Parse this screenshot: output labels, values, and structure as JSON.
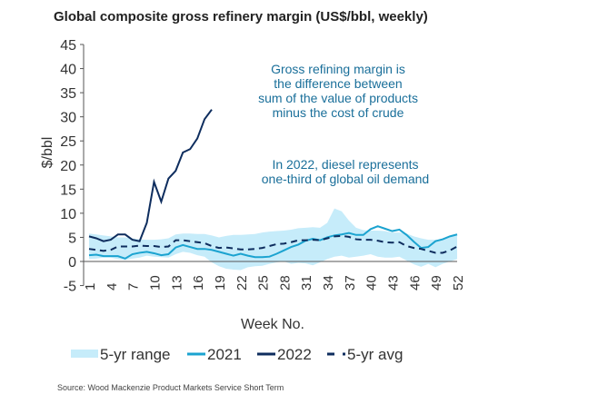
{
  "chart_data": {
    "type": "line",
    "title": "Global composite gross refinery margin (US$/bbl, weekly)",
    "xlabel": "Week No.",
    "ylabel": "$/bbl",
    "ylim": [
      -5,
      45
    ],
    "xlim": [
      1,
      52
    ],
    "yticks": [
      -5,
      0,
      5,
      10,
      15,
      20,
      25,
      30,
      35,
      40,
      45
    ],
    "xticks": [
      1,
      4,
      7,
      10,
      13,
      16,
      19,
      22,
      25,
      28,
      31,
      34,
      37,
      40,
      43,
      46,
      49,
      52
    ],
    "grid": false,
    "legend": "bottom",
    "colors": {
      "range": "#c6ecfa",
      "2021": "#1ba3d0",
      "2022": "#0e2d5e",
      "avg": "#0e2d5e",
      "annotation": "#1a6f9a"
    },
    "range": {
      "name": "5-yr range",
      "high": [
        5.8,
        5.6,
        5.4,
        5.2,
        5.0,
        5.0,
        4.8,
        4.6,
        4.5,
        4.5,
        4.6,
        4.8,
        5.6,
        5.8,
        5.8,
        5.7,
        5.7,
        5.4,
        5.0,
        5.3,
        5.5,
        5.5,
        5.6,
        5.7,
        6.0,
        6.2,
        6.3,
        6.4,
        6.6,
        6.9,
        7.0,
        7.1,
        7.0,
        8.0,
        11.0,
        10.4,
        8.5,
        7.0,
        6.5,
        6.4,
        6.4,
        6.3,
        6.0,
        6.0,
        5.8,
        5.2,
        4.8,
        4.5,
        4.5,
        4.6,
        5.0,
        5.6
      ],
      "low": [
        0.5,
        0.6,
        0.8,
        0.8,
        0.5,
        0.3,
        0.6,
        0.8,
        1.2,
        1.0,
        0.9,
        0.8,
        1.5,
        2.0,
        1.8,
        1.3,
        1.0,
        -0.2,
        -1.0,
        -1.5,
        -1.7,
        -1.8,
        -1.2,
        -1.0,
        -0.9,
        -0.5,
        -0.2,
        0,
        -0.5,
        -0.3,
        -0.4,
        -0.8,
        -0.2,
        0.5,
        1.0,
        1.2,
        0.8,
        1.0,
        1.2,
        1.5,
        1.0,
        0.8,
        0.8,
        1.0,
        0.2,
        -0.6,
        -1.1,
        -0.5,
        -1.2,
        -0.5,
        0,
        0.5
      ]
    },
    "series": [
      {
        "name": "2021",
        "values": [
          1.3,
          1.4,
          1.1,
          1.1,
          1.1,
          0.6,
          1.5,
          1.8,
          2,
          1.7,
          1.3,
          1.5,
          2.9,
          3.4,
          3,
          2.6,
          2.6,
          2.4,
          2,
          1.6,
          1.2,
          1.6,
          1.2,
          0.9,
          0.9,
          1,
          1.6,
          2.3,
          3,
          3.5,
          4.3,
          4.7,
          4.4,
          5,
          5.4,
          5.6,
          5.9,
          5.5,
          5.5,
          6.7,
          7.3,
          6.8,
          6.3,
          6.6,
          5.5,
          4.1,
          2.8,
          3,
          4.2,
          4.6,
          5.2,
          5.6
        ]
      },
      {
        "name": "2022",
        "values": [
          5.2,
          4.8,
          4.2,
          4.5,
          5.6,
          5.6,
          4.5,
          4.2,
          8,
          16.5,
          12.4,
          17.2,
          18.8,
          22.6,
          23.3,
          25.5,
          29.5,
          31.5
        ]
      },
      {
        "name": "5-yr avg",
        "values": [
          2.6,
          2.4,
          2.2,
          2.4,
          3.1,
          3.1,
          3.1,
          3.3,
          3.2,
          3.2,
          3.0,
          3.1,
          4.4,
          4.4,
          4.2,
          4.0,
          3.8,
          3.2,
          2.8,
          2.9,
          2.7,
          2.5,
          2.5,
          2.6,
          2.8,
          3.2,
          3.6,
          3.7,
          4.0,
          4.4,
          4.4,
          4.5,
          4.4,
          4.8,
          5.2,
          5.3,
          5.1,
          4.6,
          4.5,
          4.5,
          4.3,
          4.0,
          3.9,
          4.0,
          3.2,
          2.8,
          2.6,
          2.2,
          1.8,
          1.8,
          2.3,
          3.1
        ]
      }
    ],
    "annotations": [
      [
        "Gross refining margin is",
        "the difference between",
        "sum of the value of products",
        "minus the cost of crude"
      ],
      [
        "In 2022, diesel represents",
        "one-third of global oil demand"
      ]
    ]
  },
  "source": "Source: Wood Mackenzie Product Markets Service Short Term"
}
